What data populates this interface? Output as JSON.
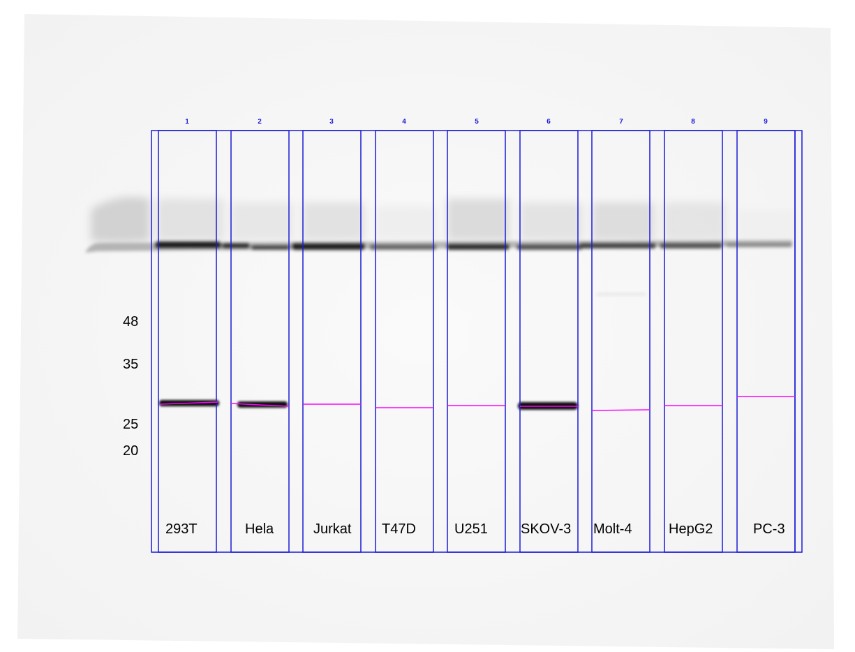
{
  "lanes": [
    {
      "number": "1",
      "cell_line": "293T"
    },
    {
      "number": "2",
      "cell_line": "Hela"
    },
    {
      "number": "3",
      "cell_line": "Jurkat"
    },
    {
      "number": "4",
      "cell_line": "T47D"
    },
    {
      "number": "5",
      "cell_line": "U251"
    },
    {
      "number": "6",
      "cell_line": "SKOV-3"
    },
    {
      "number": "7",
      "cell_line": "Molt-4"
    },
    {
      "number": "8",
      "cell_line": "HepG2"
    },
    {
      "number": "9",
      "cell_line": "PC-3"
    }
  ],
  "markers": [
    "48",
    "35",
    "25",
    "20"
  ],
  "colors": {
    "lane_frame": "#1a1ad6",
    "band_marker": "#ff00ff",
    "lane_number": "#1a1ad6",
    "band": "#111111"
  }
}
